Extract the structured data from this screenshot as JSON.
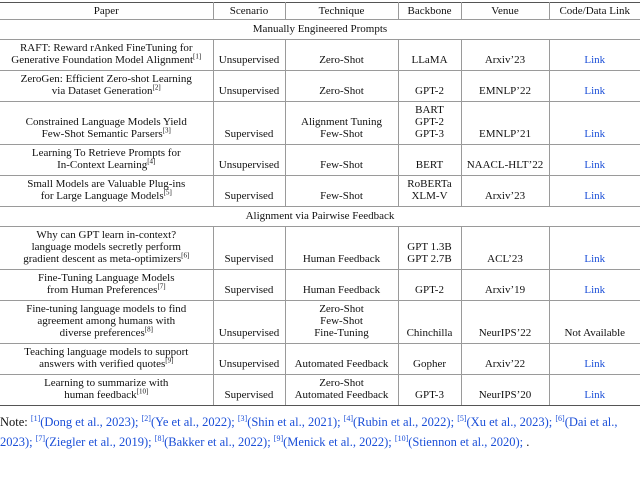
{
  "header": [
    "Paper",
    "Scenario",
    "Technique",
    "Backbone",
    "Venue",
    "Code/Data Link"
  ],
  "sections": [
    {
      "title": "Manually Engineered Prompts",
      "rows": [
        {
          "paper": [
            "RAFT: Reward rAnked FineTuning for",
            "Generative Foundation Model Alignment"
          ],
          "ref": "[1]",
          "scenario": "Unsupervised",
          "technique": [
            "Zero-Shot"
          ],
          "backbone": [
            "LLaMA"
          ],
          "venue": "Arxiv’23",
          "link": "Link"
        },
        {
          "paper": [
            "ZeroGen: Efficient Zero-shot Learning",
            "via Dataset Generation"
          ],
          "ref": "[2]",
          "scenario": "Unsupervised",
          "technique": [
            "Zero-Shot"
          ],
          "backbone": [
            "GPT-2"
          ],
          "venue": "EMNLP’22",
          "link": "Link"
        },
        {
          "paper": [
            "Constrained Language Models Yield",
            "Few-Shot Semantic Parsers"
          ],
          "ref": "[3]",
          "scenario": "Supervised",
          "technique": [
            "Alignment Tuning",
            "Few-Shot"
          ],
          "backbone": [
            "BART",
            "GPT-2",
            "GPT-3"
          ],
          "venue": "EMNLP’21",
          "link": "Link"
        },
        {
          "paper": [
            "Learning To Retrieve Prompts for",
            "In-Context Learning"
          ],
          "ref": "[4]",
          "scenario": "Unsupervised",
          "technique": [
            "Few-Shot"
          ],
          "backbone": [
            "BERT"
          ],
          "venue": "NAACL-HLT’22",
          "link": "Link"
        },
        {
          "paper": [
            "Small Models are Valuable Plug-ins",
            "for Large Language Models"
          ],
          "ref": "[5]",
          "scenario": "Supervised",
          "technique": [
            "Few-Shot"
          ],
          "backbone": [
            "RoBERTa",
            "XLM-V"
          ],
          "venue": "Arxiv’23",
          "link": "Link"
        }
      ]
    },
    {
      "title": "Alignment via Pairwise Feedback",
      "rows": [
        {
          "paper": [
            "Why can GPT learn in-context?",
            "language models secretly perform",
            "gradient descent as meta-optimizers"
          ],
          "ref": "[6]",
          "scenario": "Supervised",
          "technique": [
            "Human Feedback"
          ],
          "backbone": [
            "GPT 1.3B",
            "GPT 2.7B"
          ],
          "venue": "ACL’23",
          "link": "Link"
        },
        {
          "paper": [
            "Fine-Tuning Language Models",
            "from Human Preferences"
          ],
          "ref": "[7]",
          "scenario": "Supervised",
          "technique": [
            "Human Feedback"
          ],
          "backbone": [
            "GPT-2"
          ],
          "venue": "Arxiv’19",
          "link": "Link"
        },
        {
          "paper": [
            "Fine-tuning language models to find",
            "agreement among humans with",
            "diverse preferences"
          ],
          "ref": "[8]",
          "scenario": "Unsupervised",
          "technique": [
            "Zero-Shot",
            "Few-Shot",
            "Fine-Tuning"
          ],
          "backbone": [
            "Chinchilla"
          ],
          "venue": "NeurIPS’22",
          "link": "Not Available"
        },
        {
          "paper": [
            "Teaching language models to support",
            "answers with verified quotes"
          ],
          "ref": "[9]",
          "scenario": "Unsupervised",
          "technique": [
            "Automated Feedback"
          ],
          "backbone": [
            "Gopher"
          ],
          "venue": "Arxiv’22",
          "link": "Link"
        },
        {
          "paper": [
            "Learning to summarize with",
            "human feedback"
          ],
          "ref": "[10]",
          "scenario": "Supervised",
          "technique": [
            "Zero-Shot",
            "Automated Feedback"
          ],
          "backbone": [
            "GPT-3"
          ],
          "venue": "NeurIPS’20",
          "link": "Link"
        }
      ]
    }
  ],
  "note": {
    "label": "Note:",
    "citations": [
      {
        "ref": "[1]",
        "text": "(Dong et al., 2023);"
      },
      {
        "ref": "[2]",
        "text": "(Ye et al., 2022);"
      },
      {
        "ref": "[3]",
        "text": "(Shin et al., 2021);"
      },
      {
        "ref": "[4]",
        "text": "(Rubin et al., 2022);"
      },
      {
        "ref": "[5]",
        "text": "(Xu et al., 2023);"
      },
      {
        "ref": "[6]",
        "text": "(Dai et al., 2023);"
      },
      {
        "ref": "[7]",
        "text": "(Ziegler et al., 2019);"
      },
      {
        "ref": "[8]",
        "text": "(Bakker et al., 2022);"
      },
      {
        "ref": "[9]",
        "text": "(Menick et al., 2022);"
      },
      {
        "ref": "[10]",
        "text": "(Stiennon et al., 2020);"
      }
    ],
    "end": "."
  }
}
